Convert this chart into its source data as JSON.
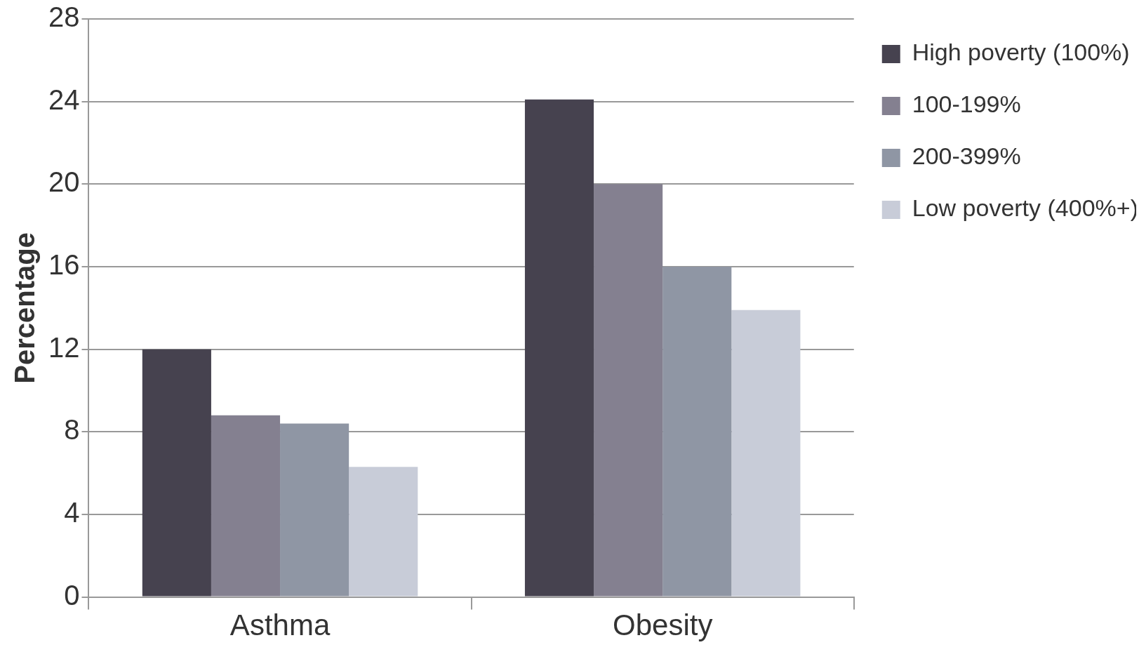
{
  "chart_data": {
    "type": "bar",
    "ylabel": "Percentage",
    "categories": [
      "Asthma",
      "Obesity"
    ],
    "series": [
      {
        "name": "High poverty (100%)",
        "color": "#46424f",
        "values": [
          12,
          24.1
        ]
      },
      {
        "name": "100-199%",
        "color": "#848090",
        "values": [
          8.8,
          20
        ]
      },
      {
        "name": "200-399%",
        "color": "#8f96a4",
        "values": [
          8.4,
          16
        ]
      },
      {
        "name": "Low poverty (400%+)",
        "color": "#c8ccd8",
        "values": [
          6.3,
          13.9
        ]
      }
    ],
    "ylim": [
      0,
      28
    ],
    "yticks": [
      0,
      4,
      8,
      12,
      16,
      20,
      24,
      28
    ],
    "grid": "y",
    "legend": "top right"
  }
}
